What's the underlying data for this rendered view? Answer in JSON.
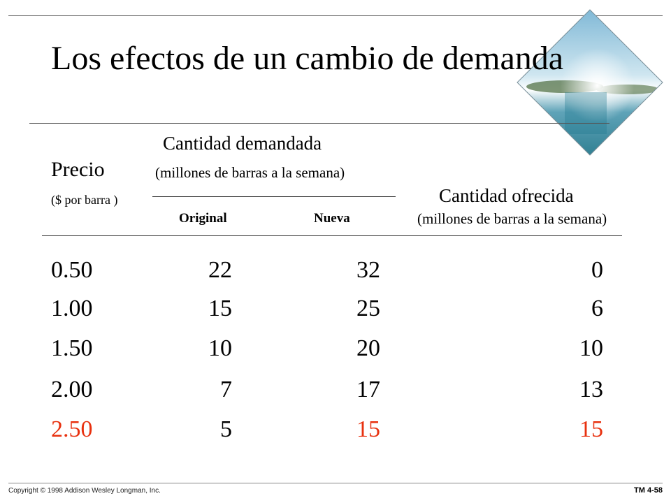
{
  "title": "Los efectos de un cambio de demanda",
  "headers": {
    "demand_title": "Cantidad demandada",
    "price_label": "Precio",
    "demand_units": "(millones de barras a la semana)",
    "price_units": "($ por barra )",
    "supply_title": "Cantidad ofrecida",
    "original_label": "Original",
    "new_label": "Nueva",
    "supply_units": "(millones de barras a la semana)"
  },
  "rows": [
    {
      "price": "0.50",
      "original": "22",
      "new": "32",
      "supplied": "0"
    },
    {
      "price": "1.00",
      "original": "15",
      "new": "25",
      "supplied": "6"
    },
    {
      "price": "1.50",
      "original": "10",
      "new": "20",
      "supplied": "10"
    },
    {
      "price": "2.00",
      "original": "7",
      "new": "17",
      "supplied": "13"
    },
    {
      "price": "2.50",
      "original": "5",
      "new": "15",
      "supplied": "15"
    }
  ],
  "highlight_color": "#e8310f",
  "footer": {
    "copyright": "Copyright © 1998 Addison Wesley Longman, Inc.",
    "slide_number": "TM 4-58"
  }
}
